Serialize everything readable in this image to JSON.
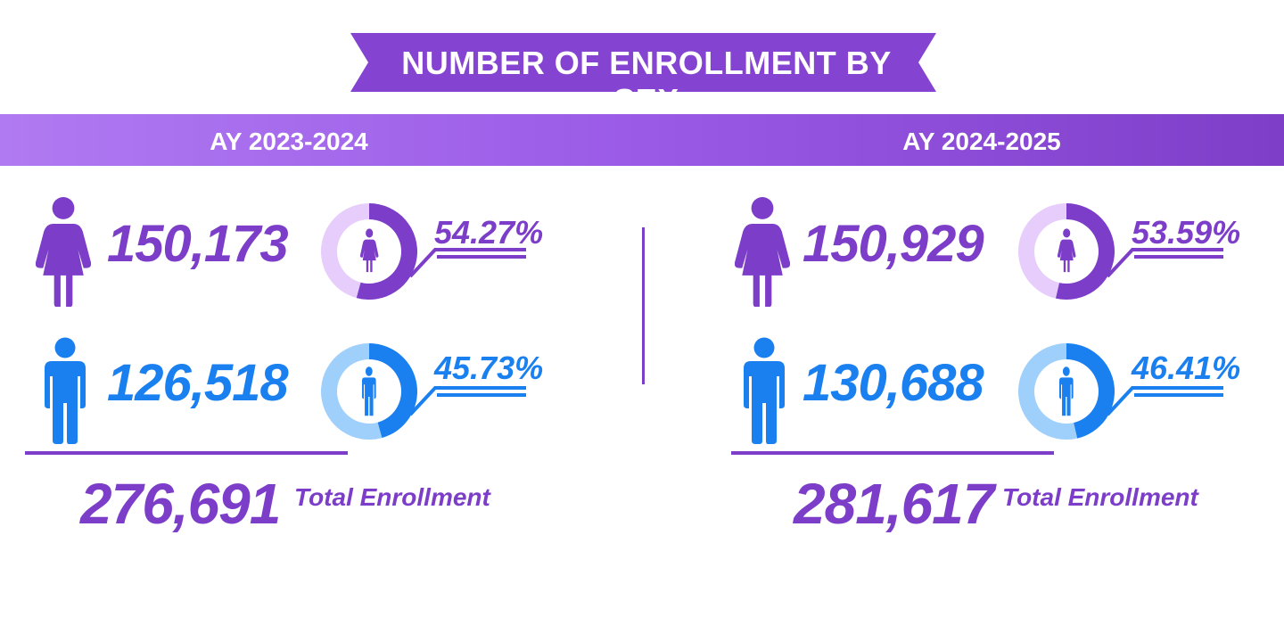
{
  "title": "NUMBER OF ENROLLMENT BY SEX",
  "colors": {
    "female": "#7c3dc9",
    "female_light": "#e6cdfb",
    "male": "#1a80f0",
    "male_light": "#9fcffb",
    "accent": "#7c3dc9"
  },
  "chart_data": [
    {
      "type": "pie",
      "title": "AY 2023-2024",
      "categories": [
        "Female",
        "Male"
      ],
      "counts": [
        "150,173",
        "126,518"
      ],
      "values": [
        150173,
        126518
      ],
      "percent_labels": [
        "54.27%",
        "45.73%"
      ],
      "percents": [
        54.27,
        45.73
      ],
      "total": "276,691",
      "total_label": "Total Enrollment"
    },
    {
      "type": "pie",
      "title": "AY 2024-2025",
      "categories": [
        "Female",
        "Male"
      ],
      "counts": [
        "150,929",
        "130,688"
      ],
      "values": [
        150929,
        130688
      ],
      "percent_labels": [
        "53.59%",
        "46.41%"
      ],
      "percents": [
        53.59,
        46.41
      ],
      "total": "281,617",
      "total_label": "Total Enrollment"
    }
  ]
}
